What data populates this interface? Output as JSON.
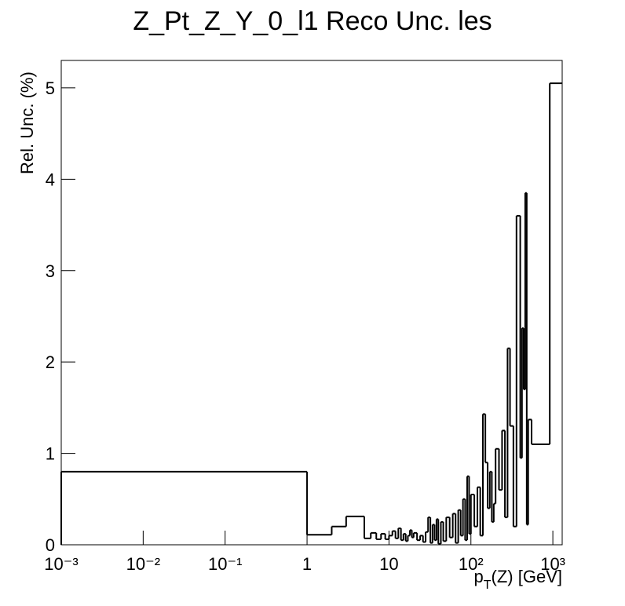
{
  "chart_data": {
    "type": "histogram",
    "title": "Z_Pt_Z_Y_0_l1 Reco Unc. les",
    "ylabel": "Rel. Unc. (%)",
    "xlabel": {
      "base": "p",
      "sub": "T",
      "rest": "(Z) [GeV]"
    },
    "log_x": true,
    "color": "#000000",
    "bins": [
      0.001,
      1,
      2,
      3,
      5,
      6,
      7,
      8,
      9,
      10,
      11,
      12,
      13,
      14,
      15,
      16,
      17,
      18,
      19,
      20,
      22,
      24,
      26,
      28,
      30,
      32,
      34,
      36,
      38,
      40,
      43,
      46,
      50,
      55,
      60,
      65,
      70,
      75,
      80,
      85,
      90,
      95,
      100,
      110,
      120,
      130,
      140,
      150,
      160,
      170,
      180,
      190,
      200,
      220,
      240,
      260,
      280,
      300,
      330,
      360,
      400,
      420,
      440,
      460,
      480,
      500,
      550,
      917,
      1300
    ],
    "values": [
      0.8,
      0.11,
      0.2,
      0.31,
      0.07,
      0.13,
      0.06,
      0.12,
      0.06,
      0.1,
      0.15,
      0.07,
      0.18,
      0.05,
      0.12,
      0.04,
      0.1,
      0.16,
      0.08,
      0.13,
      0.05,
      0.1,
      0.03,
      0.14,
      0.3,
      0.02,
      0.22,
      0.05,
      0.28,
      0.01,
      0.25,
      0.04,
      0.3,
      0.08,
      0.34,
      0.02,
      0.38,
      0.1,
      0.5,
      0.05,
      0.75,
      0.12,
      0.55,
      0.2,
      0.63,
      0.1,
      1.43,
      0.9,
      0.4,
      0.8,
      0.25,
      0.45,
      1.05,
      0.6,
      1.25,
      0.3,
      2.15,
      1.3,
      0.2,
      3.6,
      0.95,
      2.37,
      1.7,
      3.85,
      0.22,
      1.37,
      1.1,
      5.05
    ],
    "xlim": [
      0.001,
      1300
    ],
    "ylim": [
      0,
      5.3
    ],
    "xticks": [
      {
        "value": 0.001,
        "label": "10⁻³"
      },
      {
        "value": 0.01,
        "label": "10⁻²"
      },
      {
        "value": 0.1,
        "label": "10⁻¹"
      },
      1,
      10,
      {
        "value": 100,
        "label": "10²"
      },
      {
        "value": 1000,
        "label": "10³"
      }
    ],
    "yticks": [
      0,
      1,
      2,
      3,
      4,
      5
    ]
  }
}
